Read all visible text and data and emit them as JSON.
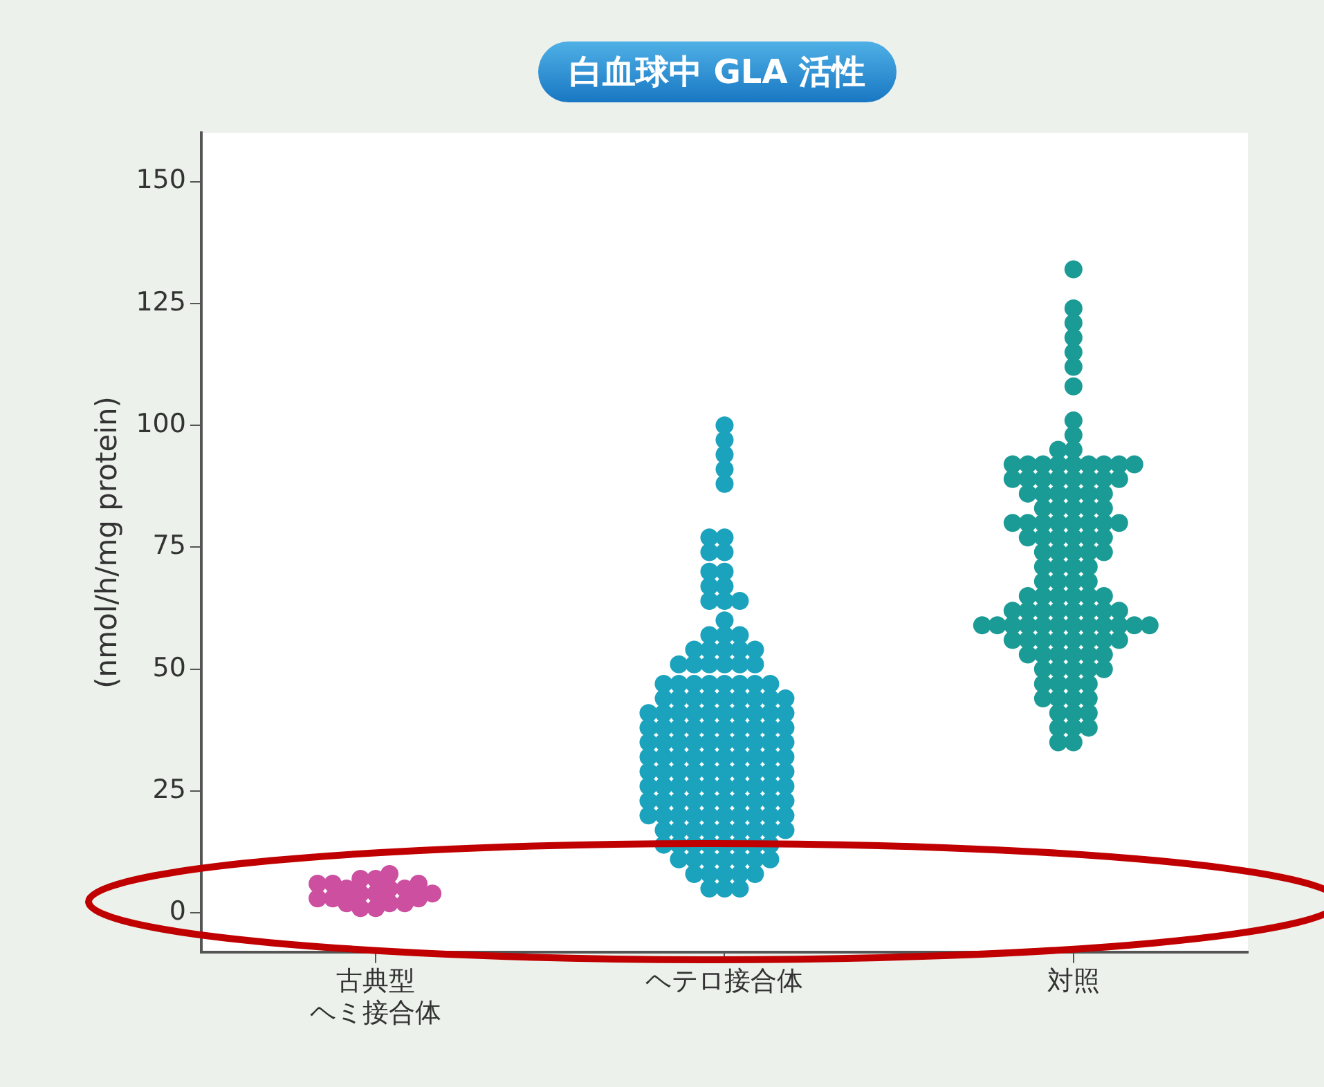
{
  "chart_data": {
    "type": "scatter",
    "title": "白血球中 GLA 活性",
    "ylabel": "(nmol/h/mg protein)",
    "categories": [
      "古典型ヘミ接合体",
      "ヘテロ接合体",
      "対照"
    ],
    "ylim": [
      -8,
      160
    ],
    "yticks": [
      0,
      25,
      50,
      75,
      100,
      125,
      150
    ],
    "grid": false,
    "legend": false,
    "marker": "circle",
    "series": [
      {
        "color": "#cc4fa0",
        "values": [
          1,
          2,
          3,
          4,
          5,
          6,
          7,
          8,
          1,
          2,
          3,
          4,
          5,
          6,
          7,
          2,
          3,
          4,
          5,
          6
        ],
        "x": [
          "古典型ヘミ接合体",
          "古典型ヘミ接合体",
          "古典型ヘミ接合体",
          "古典型ヘミ接合体",
          "古典型ヘミ接合体",
          "古典型ヘミ接合体",
          "古典型ヘミ接合体",
          "古典型ヘミ接合体",
          "古典型ヘミ接合体",
          "古典型ヘミ接合体",
          "古典型ヘミ接合体",
          "古典型ヘミ接合体",
          "古典型ヘミ接合体",
          "古典型ヘミ接合体",
          "古典型ヘミ接合体",
          "古典型ヘミ接合体",
          "古典型ヘミ接合体",
          "古典型ヘミ接合体",
          "古典型ヘミ接合体",
          "古典型ヘミ接合体"
        ]
      },
      {
        "color": "#1ba3bd",
        "values": [
          100,
          97,
          94,
          91,
          88,
          77,
          77,
          74,
          74,
          70,
          70,
          67,
          67,
          64,
          64,
          64,
          60,
          57,
          57,
          57,
          54,
          54,
          54,
          54,
          54,
          51,
          51,
          51,
          51,
          51,
          51,
          47,
          47,
          47,
          47,
          47,
          47,
          47,
          47,
          44,
          44,
          44,
          44,
          44,
          44,
          44,
          44,
          44,
          41,
          41,
          41,
          41,
          41,
          41,
          41,
          41,
          41,
          41,
          38,
          38,
          38,
          38,
          38,
          38,
          38,
          38,
          38,
          38,
          35,
          35,
          35,
          35,
          35,
          35,
          35,
          35,
          35,
          35,
          32,
          32,
          32,
          32,
          32,
          32,
          32,
          32,
          32,
          32,
          29,
          29,
          29,
          29,
          29,
          29,
          29,
          29,
          29,
          29,
          26,
          26,
          26,
          26,
          26,
          26,
          26,
          26,
          26,
          26,
          23,
          23,
          23,
          23,
          23,
          23,
          23,
          23,
          23,
          23,
          20,
          20,
          20,
          20,
          20,
          20,
          20,
          20,
          20,
          20,
          17,
          17,
          17,
          17,
          17,
          17,
          17,
          17,
          17,
          14,
          14,
          14,
          14,
          14,
          14,
          14,
          14,
          11,
          11,
          11,
          11,
          11,
          11,
          11,
          8,
          8,
          8,
          8,
          8,
          5,
          5,
          5
        ],
        "x": [
          "ヘテロ接合体",
          "ヘテロ接合体",
          "ヘテロ接合体",
          "ヘテロ接合体",
          "ヘテロ接合体",
          "ヘテロ接合体",
          "ヘテロ接合体",
          "ヘテロ接合体",
          "ヘテロ接合体",
          "ヘテロ接合体",
          "ヘテロ接合体",
          "ヘテロ接合体",
          "ヘテロ接合体",
          "ヘテロ接合体",
          "ヘテロ接合体",
          "ヘテロ接合体",
          "ヘテロ接合体",
          "ヘテロ接合体",
          "ヘテロ接合体",
          "ヘテロ接合体",
          "ヘテロ接合体",
          "ヘテロ接合体",
          "ヘテロ接合体",
          "ヘテロ接合体",
          "ヘテロ接合体",
          "ヘテロ接合体",
          "ヘテロ接合体",
          "ヘテロ接合体",
          "ヘテロ接合体",
          "ヘテロ接合体",
          "ヘテロ接合体",
          "ヘテロ接合体",
          "ヘテロ接合体",
          "ヘテロ接合体",
          "ヘテロ接合体",
          "ヘテロ接合体",
          "ヘテロ接合体",
          "ヘテロ接合体",
          "ヘテロ接合体",
          "ヘテロ接合体",
          "ヘテロ接合体",
          "ヘテロ接合体",
          "ヘテロ接合体",
          "ヘテロ接合体",
          "ヘテロ接合体",
          "ヘテロ接合体",
          "ヘテロ接合体",
          "ヘテロ接合体",
          "ヘテロ接合体",
          "ヘテロ接合体",
          "ヘテロ接合体",
          "ヘテロ接合体",
          "ヘテロ接合体",
          "ヘテロ接合体",
          "ヘテロ接合体",
          "ヘテロ接合体",
          "ヘテロ接合体",
          "ヘテロ接合体",
          "ヘテロ接合体",
          "ヘテロ接合体",
          "ヘテロ接合体",
          "ヘテロ接合体",
          "ヘテロ接合体",
          "ヘテロ接合体",
          "ヘテロ接合体",
          "ヘテロ接合体",
          "ヘテロ接合体",
          "ヘテロ接合体",
          "ヘテロ接合体",
          "ヘテロ接合体",
          "ヘテロ接合体",
          "ヘテロ接合体",
          "ヘテロ接合体",
          "ヘテロ接合体",
          "ヘテロ接合体",
          "ヘテロ接合体",
          "ヘテロ接合体",
          "ヘテロ接合体",
          "ヘテロ接合体",
          "ヘテロ接合体",
          "ヘテロ接合体",
          "ヘテロ接合体",
          "ヘテロ接合体",
          "ヘテロ接合体",
          "ヘテロ接合体",
          "ヘテロ接合体",
          "ヘテロ接合体",
          "ヘテロ接合体",
          "ヘテロ接合体",
          "ヘテロ接合体",
          "ヘテロ接合体",
          "ヘテロ接合体",
          "ヘテロ接合体",
          "ヘテロ接合体",
          "ヘテロ接合体",
          "ヘテロ接合体",
          "ヘテロ接合体",
          "ヘテロ接合体",
          "ヘテロ接合体",
          "ヘテロ接合体",
          "ヘテロ接合体",
          "ヘテロ接合体",
          "ヘテロ接合体",
          "ヘテロ接合体",
          "ヘテロ接合体",
          "ヘテロ接合体",
          "ヘテロ接合体",
          "ヘテロ接合体",
          "ヘテロ接合体",
          "ヘテロ接合体",
          "ヘテロ接合体",
          "ヘテロ接合体",
          "ヘテロ接合体",
          "ヘテロ接合体",
          "ヘテロ接合体",
          "ヘテロ接合体",
          "ヘテロ接合体",
          "ヘテロ接合体",
          "ヘテロ接合体",
          "ヘテロ接合体",
          "ヘテロ接合体",
          "ヘテロ接合体",
          "ヘテロ接合体",
          "ヘテロ接合体",
          "ヘテロ接合体",
          "ヘテロ接合体",
          "ヘテロ接合体",
          "ヘテロ接合体",
          "ヘテロ接合体",
          "ヘテロ接合体",
          "ヘテロ接合体",
          "ヘテロ接合体",
          "ヘテロ接合体",
          "ヘテロ接合体",
          "ヘテロ接合体",
          "ヘテロ接合体",
          "ヘテロ接合体",
          "ヘテロ接合体",
          "ヘテロ接合体",
          "ヘテロ接合体",
          "ヘテロ接合体",
          "ヘテロ接合体",
          "ヘテロ接合体",
          "ヘテロ接合体",
          "ヘテロ接合体",
          "ヘテロ接合体",
          "ヘテロ接合体",
          "ヘテロ接合体",
          "ヘテロ接合体",
          "ヘテロ接合体",
          "ヘテロ接合体",
          "ヘテロ接合体",
          "ヘテロ接合体",
          "ヘテロ接合体",
          "ヘテロ接合体",
          "ヘテロ接合体",
          "ヘテロ接合体",
          "ヘテロ接合体",
          "ヘテロ接合体",
          "ヘテロ接合体"
        ]
      },
      {
        "color": "#1a9b95",
        "values": [
          132,
          124,
          121,
          118,
          115,
          112,
          108,
          101,
          98,
          95,
          95,
          92,
          92,
          92,
          92,
          92,
          92,
          92,
          92,
          92,
          89,
          89,
          89,
          89,
          89,
          89,
          89,
          89,
          86,
          86,
          86,
          86,
          86,
          86,
          83,
          83,
          83,
          83,
          83,
          80,
          80,
          80,
          80,
          80,
          80,
          80,
          80,
          77,
          77,
          77,
          77,
          77,
          77,
          74,
          74,
          74,
          74,
          74,
          71,
          71,
          71,
          71,
          68,
          68,
          68,
          68,
          65,
          65,
          65,
          65,
          65,
          65,
          62,
          62,
          62,
          62,
          62,
          62,
          62,
          62,
          59,
          59,
          59,
          59,
          59,
          59,
          59,
          59,
          59,
          59,
          59,
          59,
          56,
          56,
          56,
          56,
          56,
          56,
          56,
          56,
          53,
          53,
          53,
          53,
          53,
          53,
          50,
          50,
          50,
          50,
          50,
          47,
          47,
          47,
          47,
          44,
          44,
          44,
          44,
          41,
          41,
          41,
          38,
          38,
          38,
          35,
          35
        ],
        "x": [
          "対照",
          "対照",
          "対照",
          "対照",
          "対照",
          "対照",
          "対照",
          "対照",
          "対照",
          "対照",
          "対照",
          "対照",
          "対照",
          "対照",
          "対照",
          "対照",
          "対照",
          "対照",
          "対照",
          "対照",
          "対照",
          "対照",
          "対照",
          "対照",
          "対照",
          "対照",
          "対照",
          "対照",
          "対照",
          "対照",
          "対照",
          "対照",
          "対照",
          "対照",
          "対照",
          "対照",
          "対照",
          "対照",
          "対照",
          "対照",
          "対照",
          "対照",
          "対照",
          "対照",
          "対照",
          "対照",
          "対照",
          "対照",
          "対照",
          "対照",
          "対照",
          "対照",
          "対照",
          "対照",
          "対照",
          "対照",
          "対照",
          "対照",
          "対照",
          "対照",
          "対照",
          "対照",
          "対照",
          "対照",
          "対照",
          "対照",
          "対照",
          "対照",
          "対照",
          "対照",
          "対照",
          "対照",
          "対照",
          "対照",
          "対照",
          "対照",
          "対照",
          "対照",
          "対照",
          "対照",
          "対照",
          "対照",
          "対照",
          "対照",
          "対照",
          "対照",
          "対照",
          "対照",
          "対照",
          "対照",
          "対照",
          "対照",
          "対照",
          "対照",
          "対照",
          "対照",
          "対照",
          "対照",
          "対照",
          "対照",
          "対照",
          "対照",
          "対照",
          "対照",
          "対照",
          "対照",
          "対照",
          "対照",
          "対照",
          "対照",
          "対照",
          "対照",
          "対照",
          "対照",
          "対照",
          "対照",
          "対照",
          "対照",
          "対照",
          "対照",
          "対照",
          "対照",
          "対照",
          "対照",
          "対照",
          "対照",
          "対照"
        ]
      }
    ]
  }
}
